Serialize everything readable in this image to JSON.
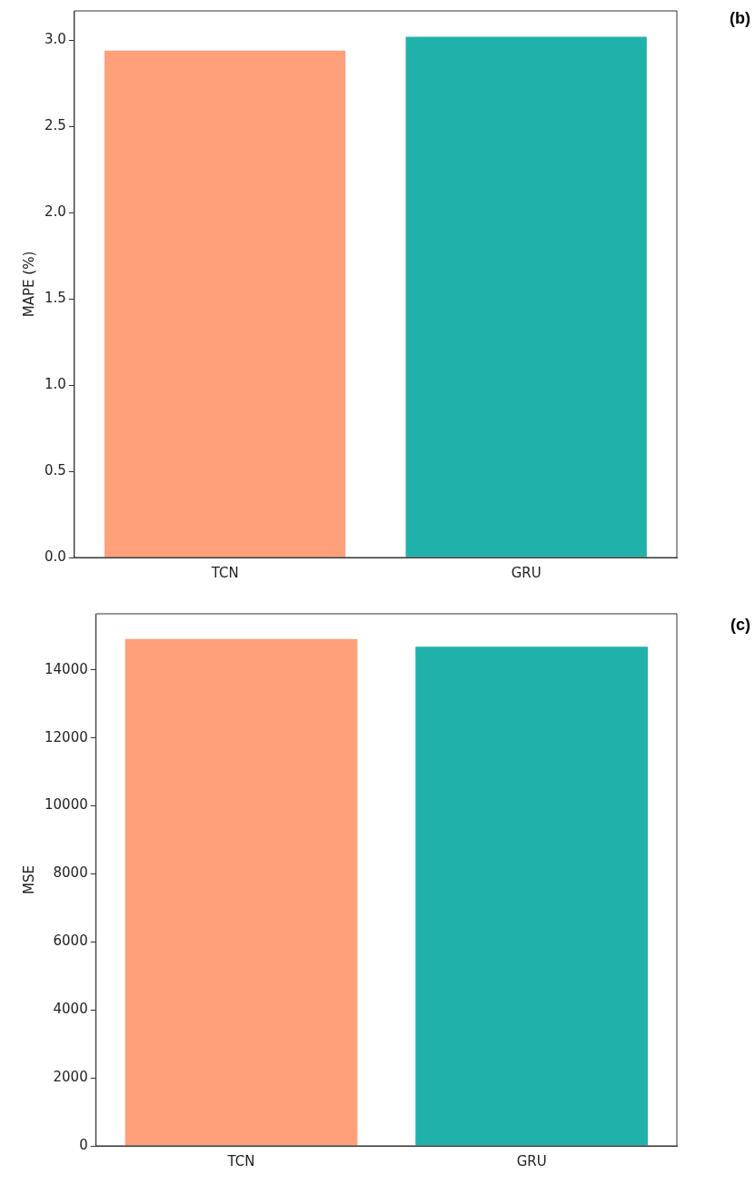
{
  "chart_data": [
    {
      "type": "bar",
      "categories": [
        "TCN",
        "GRU"
      ],
      "ylabel": "MAPE (%)",
      "annotations": [
        "(b)"
      ],
      "ylim": [
        0,
        3.17
      ],
      "yticks": [
        {
          "value": 0,
          "label": "0.0"
        },
        {
          "value": 0.5,
          "label": "0.5"
        },
        {
          "value": 1,
          "label": "1.0"
        },
        {
          "value": 1.5,
          "label": "1.5"
        },
        {
          "value": 2,
          "label": "2.0"
        },
        {
          "value": 2.5,
          "label": "2.5"
        },
        {
          "value": 3,
          "label": "3.0"
        }
      ],
      "values": [
        2.94,
        3.02
      ],
      "colors": [
        "#ffa07a",
        "#20b2aa"
      ],
      "grid": false,
      "legend": false
    },
    {
      "type": "bar",
      "categories": [
        "TCN",
        "GRU"
      ],
      "ylabel": "MSE",
      "annotations": [
        "(c)"
      ],
      "ylim": [
        0,
        15650
      ],
      "yticks": [
        0,
        2000,
        4000,
        6000,
        8000,
        10000,
        12000,
        14000
      ],
      "values": [
        14910,
        14680
      ],
      "colors": [
        "#ffa07a",
        "#20b2aa"
      ],
      "grid": false,
      "legend": false
    }
  ]
}
